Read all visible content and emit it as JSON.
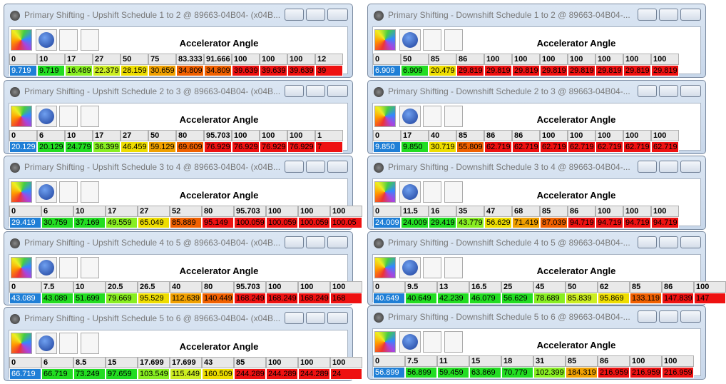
{
  "windows": [
    {
      "title": "Primary Shifting - Upshift Schedule 1 to 2 @ 89663-04B04- (x04B...",
      "header": "Accelerator Angle",
      "axis": [
        "0",
        "10",
        "17",
        "27",
        "50",
        "75",
        "83.333",
        "91.666",
        "100",
        "100",
        "100",
        "12"
      ],
      "values": [
        "9.719",
        "9.719",
        "16.489",
        "22.379",
        "28.159",
        "30.659",
        "34.809",
        "34.809",
        "39.639",
        "39.639",
        "39.639",
        "39"
      ],
      "value_colors": [
        "#1f7fd6",
        "#22dd22",
        "#88ee22",
        "#ccee22",
        "#eedd00",
        "#f0a000",
        "#f06000",
        "#f06000",
        "#ee1111",
        "#ee1111",
        "#ee1111",
        "#ee1111"
      ]
    },
    {
      "title": "Primary Shifting - Upshift Schedule 2 to 3 @ 89663-04B04- (x04B...",
      "header": "Accelerator Angle",
      "axis": [
        "0",
        "6",
        "10",
        "17",
        "27",
        "50",
        "80",
        "95.703",
        "100",
        "100",
        "100",
        "1"
      ],
      "values": [
        "20.129",
        "20.129",
        "24.779",
        "36.399",
        "46.459",
        "59.129",
        "69.609",
        "76.929",
        "76.929",
        "76.929",
        "76.929",
        "7"
      ],
      "value_colors": [
        "#1f7fd6",
        "#22dd22",
        "#22dd22",
        "#88ee22",
        "#eedd00",
        "#f0a000",
        "#f06000",
        "#ee1111",
        "#ee1111",
        "#ee1111",
        "#ee1111",
        "#ee1111"
      ]
    },
    {
      "title": "Primary Shifting - Upshift Schedule 3 to 4 @ 89663-04B04- (x04B...",
      "header": "Accelerator Angle",
      "axis": [
        "0",
        "6",
        "10",
        "17",
        "27",
        "52",
        "80",
        "95.703",
        "100",
        "100",
        "100"
      ],
      "values": [
        "29.419",
        "30.759",
        "37.169",
        "49.559",
        "65.049",
        "85.889",
        "95.149",
        "100.059",
        "100.059",
        "100.059",
        "100.05"
      ],
      "value_colors": [
        "#1f7fd6",
        "#22dd22",
        "#22dd22",
        "#88ee22",
        "#eedd00",
        "#f06000",
        "#ee1111",
        "#ee1111",
        "#ee1111",
        "#ee1111",
        "#ee1111"
      ]
    },
    {
      "title": "Primary Shifting - Upshift Schedule 4 to 5 @ 89663-04B04- (x04B...",
      "header": "Accelerator Angle",
      "axis": [
        "0",
        "7.5",
        "10",
        "20.5",
        "26.5",
        "40",
        "80",
        "95.703",
        "100",
        "100",
        "100"
      ],
      "values": [
        "43.089",
        "43.089",
        "51.699",
        "79.669",
        "95.529",
        "112.639",
        "140.449",
        "168.249",
        "168.249",
        "168.249",
        "168"
      ],
      "value_colors": [
        "#1f7fd6",
        "#22dd22",
        "#22dd22",
        "#88ee22",
        "#eedd00",
        "#f0a000",
        "#f06000",
        "#ee1111",
        "#ee1111",
        "#ee1111",
        "#ee1111"
      ]
    },
    {
      "title": "Primary Shifting - Upshift Schedule 5 to 6 @ 89663-04B04- (x04B...",
      "header": "Accelerator Angle",
      "axis": [
        "0",
        "6",
        "8.5",
        "15",
        "17.699",
        "17.699",
        "43",
        "85",
        "100",
        "100",
        "100"
      ],
      "values": [
        "66.719",
        "66.719",
        "73.249",
        "97.659",
        "103.549",
        "115.449",
        "160.509",
        "244.289",
        "244.289",
        "244.289",
        "24"
      ],
      "value_colors": [
        "#1f7fd6",
        "#22dd22",
        "#22dd22",
        "#22dd22",
        "#88ee22",
        "#ccee22",
        "#eedd00",
        "#ee1111",
        "#ee1111",
        "#ee1111",
        "#ee1111"
      ]
    },
    {
      "title": "Primary Shifting - Downshift Schedule 1 to 2 @ 89663-04B04-...",
      "header": "Accelerator Angle",
      "axis": [
        "0",
        "50",
        "85",
        "86",
        "100",
        "100",
        "100",
        "100",
        "100",
        "100",
        "100"
      ],
      "values": [
        "6.909",
        "6.909",
        "20.479",
        "29.819",
        "29.819",
        "29.819",
        "29.819",
        "29.819",
        "29.819",
        "29.819",
        "29.819"
      ],
      "value_colors": [
        "#1f7fd6",
        "#22dd22",
        "#eedd00",
        "#ee1111",
        "#ee1111",
        "#ee1111",
        "#ee1111",
        "#ee1111",
        "#ee1111",
        "#ee1111",
        "#ee1111"
      ]
    },
    {
      "title": "Primary Shifting - Downshift Schedule 2 to 3 @ 89663-04B04-...",
      "header": "Accelerator Angle",
      "axis": [
        "0",
        "17",
        "40",
        "85",
        "86",
        "86",
        "100",
        "100",
        "100",
        "100",
        "100"
      ],
      "values": [
        "9.850",
        "9.850",
        "30.719",
        "55.809",
        "62.719",
        "62.719",
        "62.719",
        "62.719",
        "62.719",
        "62.719",
        "62.719"
      ],
      "value_colors": [
        "#1f7fd6",
        "#22dd22",
        "#eedd00",
        "#f06000",
        "#ee1111",
        "#ee1111",
        "#ee1111",
        "#ee1111",
        "#ee1111",
        "#ee1111",
        "#ee1111"
      ]
    },
    {
      "title": "Primary Shifting - Downshift Schedule 3 to 4 @ 89663-04B04-...",
      "header": "Accelerator Angle",
      "axis": [
        "0",
        "11.5",
        "16",
        "35",
        "47",
        "68",
        "85",
        "86",
        "100",
        "100",
        "100"
      ],
      "values": [
        "24.009",
        "24.009",
        "29.419",
        "43.779",
        "56.629",
        "71.419",
        "87.039",
        "94.719",
        "94.719",
        "94.719",
        "94.719"
      ],
      "value_colors": [
        "#1f7fd6",
        "#22dd22",
        "#22dd22",
        "#88ee22",
        "#eedd00",
        "#f0a000",
        "#f06000",
        "#ee1111",
        "#ee1111",
        "#ee1111",
        "#ee1111"
      ]
    },
    {
      "title": "Primary Shifting - Downshift Schedule 4 to 5 @ 89663-04B04-...",
      "header": "Accelerator Angle",
      "axis": [
        "0",
        "9.5",
        "13",
        "16.5",
        "25",
        "45",
        "50",
        "62",
        "85",
        "86",
        "100"
      ],
      "values": [
        "40.649",
        "40.649",
        "42.239",
        "46.079",
        "56.629",
        "78.689",
        "85.839",
        "95.869",
        "133.119",
        "147.839",
        "147"
      ],
      "value_colors": [
        "#1f7fd6",
        "#22dd22",
        "#22dd22",
        "#22dd22",
        "#22dd22",
        "#88ee22",
        "#ccee22",
        "#eedd00",
        "#f06000",
        "#ee1111",
        "#ee1111"
      ]
    },
    {
      "title": "Primary Shifting - Downshift Schedule 5 to 6 @ 89663-04B04-...",
      "header": "Accelerator Angle",
      "axis": [
        "0",
        "7.5",
        "11",
        "15",
        "18",
        "31",
        "85",
        "86",
        "100",
        "100"
      ],
      "values": [
        "56.899",
        "56.899",
        "59.459",
        "63.869",
        "70.779",
        "102.399",
        "184.319",
        "216.959",
        "216.959",
        "216.959"
      ],
      "value_colors": [
        "#1f7fd6",
        "#22dd22",
        "#22dd22",
        "#22dd22",
        "#22dd22",
        "#88ee22",
        "#f0a000",
        "#ee1111",
        "#ee1111",
        "#ee1111"
      ]
    }
  ]
}
